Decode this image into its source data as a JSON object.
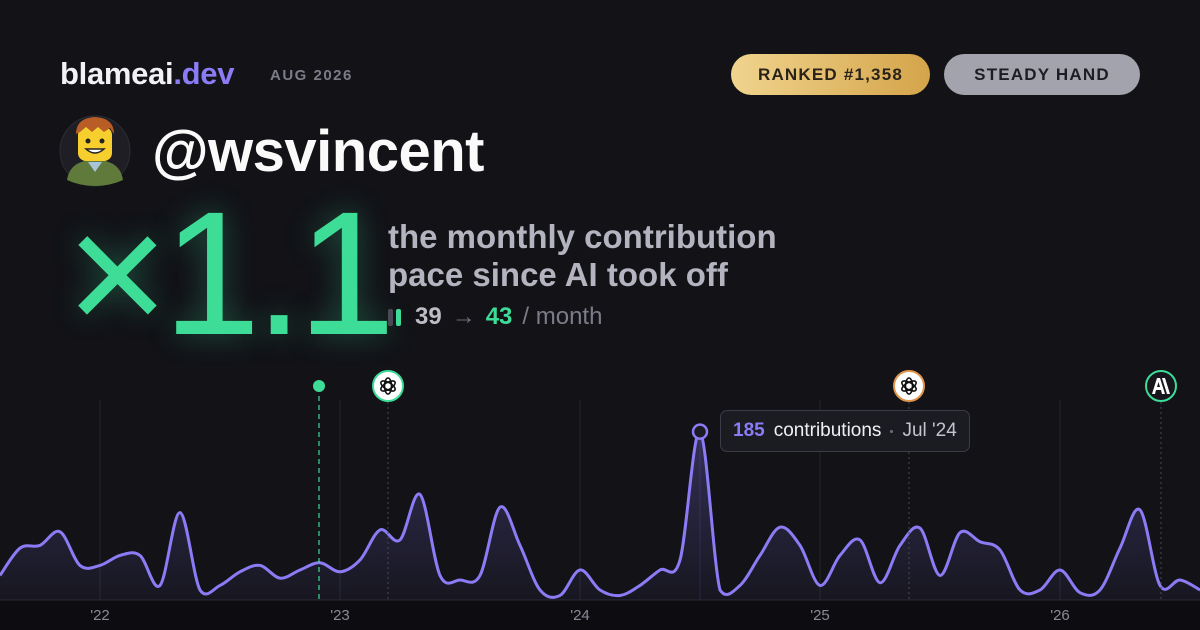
{
  "header": {
    "brand": "blameai",
    "brand_tld": ".dev",
    "period": "AUG 2026",
    "badges": [
      "RANKED #1,358",
      "STEADY HAND"
    ],
    "username": "@wsvincent"
  },
  "headline": {
    "multiplier": "×1.1",
    "description": [
      "the monthly contribution",
      "pace since AI took off"
    ],
    "before": 39,
    "arrow": "→",
    "after": 43,
    "unit": "/ month"
  },
  "chart_data": {
    "type": "area",
    "categories": [
      null,
      null,
      null,
      null,
      null,
      "'22",
      null,
      null,
      null,
      null,
      null,
      null,
      null,
      null,
      null,
      null,
      null,
      "'23",
      null,
      null,
      null,
      null,
      null,
      null,
      null,
      null,
      null,
      null,
      null,
      "'24",
      null,
      null,
      null,
      null,
      null,
      null,
      null,
      null,
      null,
      null,
      null,
      "'25",
      null,
      null,
      null,
      null,
      null,
      null,
      null,
      null,
      null,
      null,
      null,
      "'26",
      null,
      null,
      null,
      null,
      null,
      null,
      null
    ],
    "values": [
      27,
      57,
      60,
      75,
      38,
      38,
      49,
      49,
      16,
      96,
      11,
      16,
      31,
      38,
      24,
      33,
      41,
      31,
      44,
      77,
      66,
      116,
      27,
      22,
      27,
      102,
      60,
      11,
      5,
      33,
      11,
      5,
      16,
      33,
      44,
      185,
      11,
      16,
      49,
      80,
      60,
      16,
      49,
      66,
      19,
      60,
      79,
      27,
      74,
      64,
      55,
      11,
      11,
      33,
      8,
      11,
      57,
      99,
      16,
      22,
      11
    ],
    "color": "#8b7cf6",
    "ylim": [
      0,
      200
    ],
    "tooltip": {
      "label": "contributions",
      "date": "Jul '24"
    }
  }
}
